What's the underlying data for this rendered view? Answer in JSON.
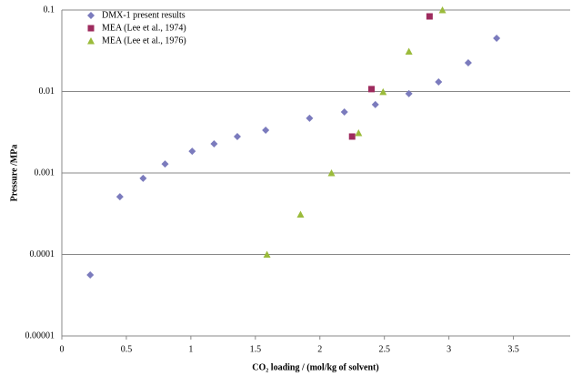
{
  "chart_data": {
    "type": "scatter",
    "x_label": "CO₂ loading / (mol/kg of solvent)",
    "y_label": "Pressure /MPa",
    "xlim": [
      0,
      3.94
    ],
    "xticks": [
      0,
      0.5,
      1,
      1.5,
      2,
      2.5,
      3,
      3.5
    ],
    "ylim": [
      1e-05,
      0.1
    ],
    "yticks": [
      1e-05,
      0.0001,
      0.001,
      0.01,
      0.1
    ],
    "ylog": true,
    "grid": true,
    "legend": "upper-left",
    "series": [
      {
        "name": "DMX-1 present results",
        "color": "#7b7bbd",
        "marker": "diamond",
        "x": [
          0.22,
          0.45,
          0.63,
          0.8,
          1.01,
          1.18,
          1.36,
          1.58,
          1.92,
          2.19,
          2.43,
          2.69,
          2.92,
          3.15,
          3.37
        ],
        "values": [
          5.6e-05,
          0.00051,
          0.00086,
          0.00129,
          0.00185,
          0.00228,
          0.0028,
          0.00335,
          0.0047,
          0.0056,
          0.0069,
          0.0094,
          0.0131,
          0.0225,
          0.045
        ]
      },
      {
        "name": "MEA (Lee et al., 1974)",
        "color": "#9e2b5e",
        "marker": "square",
        "x": [
          2.25,
          2.4,
          2.85
        ],
        "values": [
          0.0028,
          0.0107,
          0.0835
        ]
      },
      {
        "name": "MEA (Lee et al., 1976)",
        "color": "#9bbb3b",
        "marker": "triangle",
        "x": [
          1.59,
          1.85,
          2.09,
          2.3,
          2.49,
          2.69,
          2.95
        ],
        "values": [
          0.0001,
          0.00031,
          0.001,
          0.0031,
          0.0099,
          0.031,
          0.1
        ]
      }
    ]
  }
}
